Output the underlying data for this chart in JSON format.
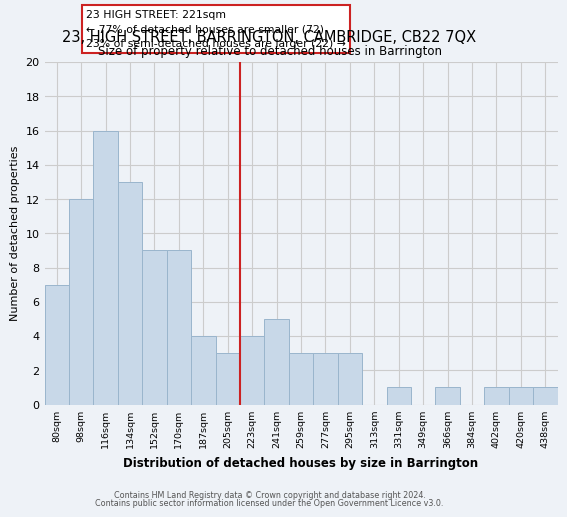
{
  "title": "23, HIGH STREET, BARRINGTON, CAMBRIDGE, CB22 7QX",
  "subtitle": "Size of property relative to detached houses in Barrington",
  "xlabel": "Distribution of detached houses by size in Barrington",
  "ylabel": "Number of detached properties",
  "bar_labels": [
    "80sqm",
    "98sqm",
    "116sqm",
    "134sqm",
    "152sqm",
    "170sqm",
    "187sqm",
    "205sqm",
    "223sqm",
    "241sqm",
    "259sqm",
    "277sqm",
    "295sqm",
    "313sqm",
    "331sqm",
    "349sqm",
    "366sqm",
    "384sqm",
    "402sqm",
    "420sqm",
    "438sqm"
  ],
  "bar_values": [
    7,
    12,
    16,
    13,
    9,
    9,
    4,
    3,
    4,
    5,
    3,
    3,
    3,
    0,
    1,
    0,
    1,
    0,
    1,
    1,
    1
  ],
  "bar_color": "#c8d8e8",
  "bar_edge_color": "#9ab5cc",
  "vline_color": "#cc2222",
  "annotation_title": "23 HIGH STREET: 221sqm",
  "annotation_line1": "← 77% of detached houses are smaller (72)",
  "annotation_line2": "23% of semi-detached houses are larger (22) →",
  "annotation_box_color": "#ffffff",
  "annotation_border_color": "#cc2222",
  "ylim": [
    0,
    20
  ],
  "yticks": [
    0,
    2,
    4,
    6,
    8,
    10,
    12,
    14,
    16,
    18,
    20
  ],
  "grid_color": "#cccccc",
  "background_color": "#eef2f7",
  "footer1": "Contains HM Land Registry data © Crown copyright and database right 2024.",
  "footer2": "Contains public sector information licensed under the Open Government Licence v3.0."
}
